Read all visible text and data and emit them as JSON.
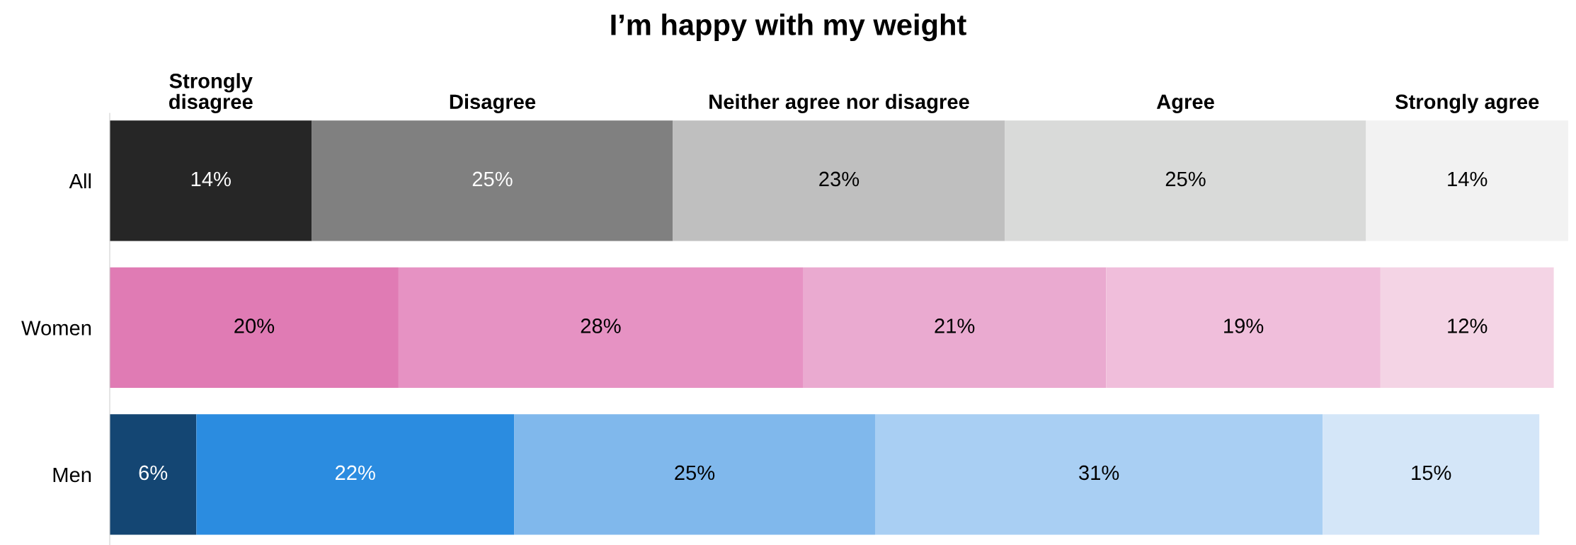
{
  "chart_data": {
    "type": "bar",
    "orientation": "horizontal",
    "stacked": true,
    "title": "I’m happy with my weight",
    "categories": [
      "All",
      "Women",
      "Men"
    ],
    "series": [
      {
        "name": "Strongly\ndisagree",
        "colors": [
          "#262626",
          "#e07bb4",
          "#144673"
        ],
        "values": [
          14,
          20,
          6
        ],
        "value_labels": [
          "14%",
          "20%",
          "6%"
        ]
      },
      {
        "name": "Disagree",
        "colors": [
          "#808080",
          "#e692c3",
          "#2b8ce0"
        ],
        "values": [
          25,
          28,
          22
        ],
        "value_labels": [
          "25%",
          "28%",
          "22%"
        ]
      },
      {
        "name": "Neither agree nor disagree",
        "colors": [
          "#bfbfbf",
          "#eaaad0",
          "#80b8ec"
        ],
        "values": [
          23,
          21,
          25
        ],
        "value_labels": [
          "23%",
          "21%",
          "25%"
        ]
      },
      {
        "name": "Agree",
        "colors": [
          "#d9dad9",
          "#f0bedb",
          "#a9cff3"
        ],
        "values": [
          25,
          19,
          31
        ],
        "value_labels": [
          "25%",
          "19%",
          "31%"
        ]
      },
      {
        "name": "Strongly agree",
        "colors": [
          "#f2f2f2",
          "#f4d4e5",
          "#d4e6f8"
        ],
        "values": [
          14,
          12,
          15
        ],
        "value_labels": [
          "14%",
          "12%",
          "15%"
        ]
      }
    ],
    "tick_labels": "y",
    "grid": false,
    "legend": false
  }
}
